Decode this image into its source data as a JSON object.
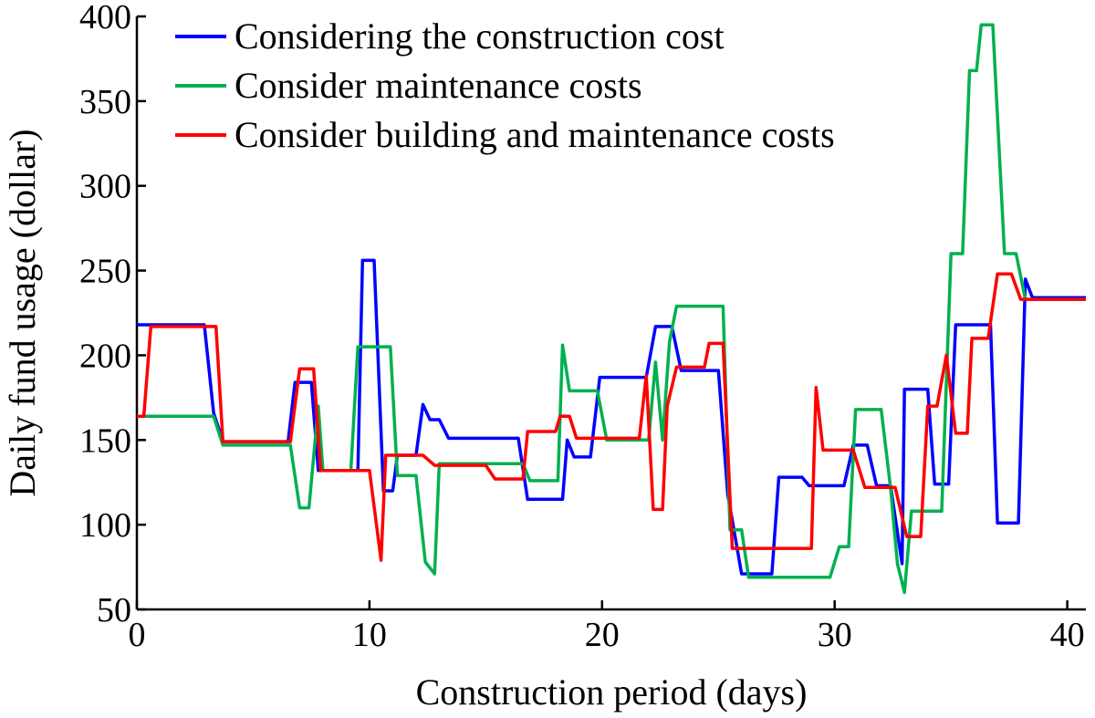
{
  "chart_data": {
    "type": "line",
    "title": "",
    "xlabel": "Construction period (days)",
    "ylabel": "Daily fund usage (dollar)",
    "xlim": [
      0,
      40.8
    ],
    "ylim": [
      50,
      400
    ],
    "xticks": [
      0,
      10,
      20,
      30,
      40
    ],
    "yticks": [
      50,
      100,
      150,
      200,
      250,
      300,
      350,
      400
    ],
    "grid": false,
    "legend_position": "top-left",
    "series": [
      {
        "name": "Considering the construction cost",
        "color": "#0000ff",
        "points": [
          [
            0,
            218
          ],
          [
            2.9,
            218
          ],
          [
            3.3,
            166
          ],
          [
            3.7,
            149
          ],
          [
            6.5,
            149
          ],
          [
            6.8,
            184
          ],
          [
            7.5,
            184
          ],
          [
            7.8,
            132
          ],
          [
            9.5,
            132
          ],
          [
            9.7,
            256
          ],
          [
            10.2,
            256
          ],
          [
            10.6,
            120
          ],
          [
            11.0,
            120
          ],
          [
            11.2,
            141
          ],
          [
            12.0,
            141
          ],
          [
            12.3,
            171
          ],
          [
            12.6,
            162
          ],
          [
            13.0,
            162
          ],
          [
            13.4,
            151
          ],
          [
            16.4,
            151
          ],
          [
            16.8,
            115
          ],
          [
            18.3,
            115
          ],
          [
            18.5,
            150
          ],
          [
            18.8,
            140
          ],
          [
            19.5,
            140
          ],
          [
            19.9,
            187
          ],
          [
            21.9,
            187
          ],
          [
            22.3,
            217
          ],
          [
            23.0,
            217
          ],
          [
            23.4,
            191
          ],
          [
            25.0,
            191
          ],
          [
            25.4,
            118
          ],
          [
            26.0,
            71
          ],
          [
            27.3,
            71
          ],
          [
            27.6,
            128
          ],
          [
            28.6,
            128
          ],
          [
            28.9,
            123
          ],
          [
            30.4,
            123
          ],
          [
            30.8,
            147
          ],
          [
            31.4,
            147
          ],
          [
            31.8,
            123
          ],
          [
            32.4,
            123
          ],
          [
            32.9,
            77
          ],
          [
            33.0,
            180
          ],
          [
            34.0,
            180
          ],
          [
            34.3,
            124
          ],
          [
            34.9,
            124
          ],
          [
            35.2,
            218
          ],
          [
            36.7,
            218
          ],
          [
            37.0,
            101
          ],
          [
            37.9,
            101
          ],
          [
            38.2,
            245
          ],
          [
            38.5,
            234
          ],
          [
            40.8,
            234
          ]
        ]
      },
      {
        "name": "Consider maintenance costs",
        "color": "#00b050",
        "points": [
          [
            0,
            164
          ],
          [
            3.3,
            164
          ],
          [
            3.7,
            147
          ],
          [
            6.6,
            147
          ],
          [
            7.0,
            110
          ],
          [
            7.4,
            110
          ],
          [
            7.8,
            170
          ],
          [
            8.0,
            132
          ],
          [
            9.2,
            132
          ],
          [
            9.5,
            205
          ],
          [
            10.9,
            205
          ],
          [
            11.2,
            129
          ],
          [
            12.0,
            129
          ],
          [
            12.4,
            78
          ],
          [
            12.8,
            71
          ],
          [
            13.0,
            136
          ],
          [
            16.6,
            136
          ],
          [
            16.9,
            126
          ],
          [
            18.1,
            126
          ],
          [
            18.3,
            206
          ],
          [
            18.6,
            179
          ],
          [
            19.8,
            179
          ],
          [
            20.2,
            150
          ],
          [
            22.0,
            150
          ],
          [
            22.3,
            196
          ],
          [
            22.6,
            150
          ],
          [
            22.9,
            208
          ],
          [
            23.2,
            229
          ],
          [
            25.2,
            229
          ],
          [
            25.5,
            97
          ],
          [
            26.0,
            97
          ],
          [
            26.3,
            69
          ],
          [
            29.8,
            69
          ],
          [
            30.2,
            87
          ],
          [
            30.6,
            87
          ],
          [
            30.9,
            168
          ],
          [
            32.0,
            168
          ],
          [
            32.4,
            122
          ],
          [
            32.7,
            77
          ],
          [
            33.0,
            60
          ],
          [
            33.3,
            108
          ],
          [
            34.6,
            108
          ],
          [
            35.0,
            260
          ],
          [
            35.5,
            260
          ],
          [
            35.8,
            368
          ],
          [
            36.1,
            368
          ],
          [
            36.3,
            395
          ],
          [
            36.8,
            395
          ],
          [
            37.3,
            260
          ],
          [
            37.8,
            260
          ],
          [
            38.2,
            233
          ],
          [
            40.8,
            233
          ]
        ]
      },
      {
        "name": "Consider building and maintenance costs",
        "color": "#ff0000",
        "points": [
          [
            0,
            164
          ],
          [
            0.3,
            164
          ],
          [
            0.6,
            217
          ],
          [
            3.4,
            217
          ],
          [
            3.7,
            149
          ],
          [
            6.6,
            149
          ],
          [
            7.0,
            192
          ],
          [
            7.6,
            192
          ],
          [
            7.9,
            132
          ],
          [
            10.0,
            132
          ],
          [
            10.5,
            79
          ],
          [
            10.7,
            141
          ],
          [
            12.3,
            141
          ],
          [
            12.8,
            135
          ],
          [
            15.0,
            135
          ],
          [
            15.4,
            127
          ],
          [
            16.6,
            127
          ],
          [
            16.8,
            155
          ],
          [
            18.0,
            155
          ],
          [
            18.2,
            164
          ],
          [
            18.6,
            164
          ],
          [
            18.9,
            151
          ],
          [
            21.6,
            151
          ],
          [
            21.9,
            188
          ],
          [
            22.2,
            109
          ],
          [
            22.6,
            109
          ],
          [
            22.8,
            170
          ],
          [
            23.2,
            193
          ],
          [
            24.4,
            193
          ],
          [
            24.6,
            207
          ],
          [
            25.2,
            207
          ],
          [
            25.6,
            86
          ],
          [
            29.0,
            86
          ],
          [
            29.2,
            181
          ],
          [
            29.5,
            144
          ],
          [
            30.8,
            144
          ],
          [
            31.3,
            122
          ],
          [
            32.6,
            122
          ],
          [
            33.1,
            93
          ],
          [
            33.7,
            93
          ],
          [
            34.0,
            170
          ],
          [
            34.4,
            170
          ],
          [
            34.8,
            200
          ],
          [
            35.2,
            154
          ],
          [
            35.7,
            154
          ],
          [
            35.9,
            210
          ],
          [
            36.6,
            210
          ],
          [
            37.0,
            248
          ],
          [
            37.6,
            248
          ],
          [
            38.0,
            233
          ],
          [
            40.8,
            233
          ]
        ]
      }
    ]
  }
}
